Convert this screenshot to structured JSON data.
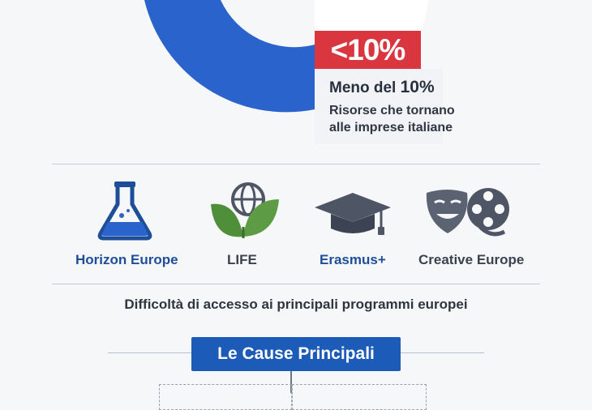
{
  "badge": {
    "text": "<10%"
  },
  "info": {
    "title_prefix": "Meno del ",
    "title_value": "10%",
    "line1": "Risorse che tornano",
    "line2": "alle imprese italiane"
  },
  "programs": [
    {
      "label": "Horizon Europe",
      "icon": "flask-icon"
    },
    {
      "label": "LIFE",
      "icon": "globe-leaves-icon"
    },
    {
      "label": "Erasmus+",
      "icon": "graduation-cap-icon"
    },
    {
      "label": "Creative Europe",
      "icon": "theater-masks-film-icon"
    }
  ],
  "subtitle": "Difficoltà di accesso ai principali programmi europei",
  "causes": {
    "title": "Le Cause Principali"
  },
  "colors": {
    "primary_blue": "#1d5bb8",
    "donut_blue": "#2a63cc",
    "accent_red": "#d93640",
    "icon_green": "#4f8f3a",
    "icon_gray": "#4e5665"
  }
}
